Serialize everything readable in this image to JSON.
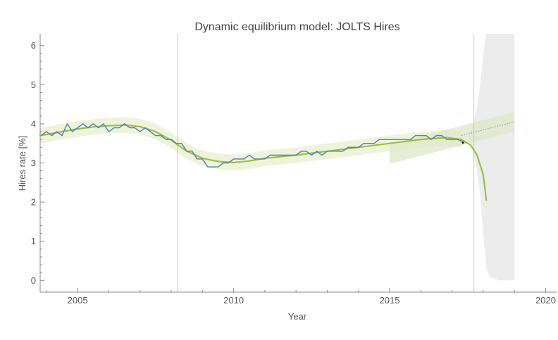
{
  "chart_data": {
    "type": "line",
    "title": "Dynamic equilibrium model: JOLTS Hires",
    "xlabel": "Year",
    "ylabel": "Hires rate [%]",
    "xlim": [
      2003.8,
      2020.35
    ],
    "ylim": [
      -0.3,
      6.3
    ],
    "x_ticks": [
      2005,
      2010,
      2015,
      2020
    ],
    "x_tick_labels": [
      "2005",
      "2010",
      "2015",
      "2020"
    ],
    "y_ticks": [
      0,
      1,
      2,
      3,
      4,
      5,
      6
    ],
    "y_tick_labels": [
      "0",
      "1",
      "2",
      "3",
      "4",
      "5",
      "6"
    ],
    "grid": false,
    "vertical_markers": [
      2008.2,
      2017.7
    ],
    "colors": {
      "data": "#5b84b1",
      "model": "#9dbd4a",
      "band": "#eef4dc",
      "forecast_band": "#dfe7c8",
      "uncertainty": "#ececec",
      "marker": "#c8c8c8",
      "axis": "#888888"
    },
    "series": [
      {
        "name": "",
        "role": "data",
        "x": [
          2003.83,
          2004.0,
          2004.17,
          2004.33,
          2004.5,
          2004.67,
          2004.83,
          2005.0,
          2005.17,
          2005.33,
          2005.5,
          2005.67,
          2005.83,
          2006.0,
          2006.17,
          2006.33,
          2006.5,
          2006.67,
          2006.83,
          2007.0,
          2007.17,
          2007.33,
          2007.5,
          2007.67,
          2007.83,
          2008.0,
          2008.17,
          2008.33,
          2008.5,
          2008.67,
          2008.83,
          2009.0,
          2009.17,
          2009.33,
          2009.5,
          2009.67,
          2009.83,
          2010.0,
          2010.17,
          2010.33,
          2010.5,
          2010.67,
          2010.83,
          2011.0,
          2011.17,
          2011.33,
          2011.5,
          2011.67,
          2011.83,
          2012.0,
          2012.17,
          2012.33,
          2012.5,
          2012.67,
          2012.83,
          2013.0,
          2013.17,
          2013.33,
          2013.5,
          2013.67,
          2013.83,
          2014.0,
          2014.17,
          2014.33,
          2014.5,
          2014.67,
          2014.83,
          2015.0,
          2015.17,
          2015.33,
          2015.5,
          2015.67,
          2015.83,
          2016.0,
          2016.17,
          2016.33,
          2016.5,
          2016.67,
          2016.83,
          2017.0,
          2017.17,
          2017.33
        ],
        "y": [
          3.7,
          3.8,
          3.7,
          3.8,
          3.7,
          4.0,
          3.8,
          3.9,
          4.0,
          3.9,
          4.0,
          3.9,
          4.0,
          3.8,
          3.9,
          3.9,
          4.0,
          3.9,
          3.9,
          3.8,
          3.9,
          3.8,
          3.7,
          3.7,
          3.6,
          3.6,
          3.5,
          3.5,
          3.3,
          3.3,
          3.1,
          3.1,
          2.9,
          2.9,
          2.9,
          3.0,
          3.0,
          3.1,
          3.1,
          3.1,
          3.2,
          3.1,
          3.1,
          3.1,
          3.2,
          3.2,
          3.2,
          3.2,
          3.2,
          3.2,
          3.3,
          3.3,
          3.2,
          3.3,
          3.2,
          3.3,
          3.3,
          3.3,
          3.3,
          3.4,
          3.4,
          3.4,
          3.5,
          3.5,
          3.5,
          3.6,
          3.6,
          3.6,
          3.6,
          3.6,
          3.6,
          3.6,
          3.7,
          3.7,
          3.7,
          3.6,
          3.7,
          3.7,
          3.6,
          3.6,
          3.6,
          3.55
        ]
      },
      {
        "name": "",
        "role": "model",
        "x": [
          2003.8,
          2004.5,
          2005.0,
          2005.5,
          2006.0,
          2006.5,
          2007.0,
          2007.5,
          2008.0,
          2008.5,
          2009.0,
          2009.5,
          2010.0,
          2010.5,
          2011.0,
          2012.0,
          2013.0,
          2014.0,
          2015.0,
          2016.0,
          2016.8,
          2017.3,
          2017.6,
          2017.8,
          2018.0,
          2018.1
        ],
        "y": [
          3.7,
          3.8,
          3.87,
          3.92,
          3.95,
          3.97,
          3.93,
          3.8,
          3.58,
          3.3,
          3.12,
          3.04,
          3.01,
          3.05,
          3.12,
          3.2,
          3.3,
          3.4,
          3.5,
          3.6,
          3.65,
          3.6,
          3.45,
          3.2,
          2.7,
          2.05
        ]
      },
      {
        "name": "",
        "role": "trend-extension",
        "x": [
          2017.3,
          2019.0
        ],
        "y": [
          3.7,
          4.05
        ]
      }
    ],
    "model_band_halfwidth": 0.2,
    "trend_band_halfwidth": 0.25,
    "endpoint": {
      "x": 2017.35,
      "y": 3.52
    },
    "forecast_uncertainty": {
      "x": [
        2017.55,
        2017.7,
        2017.8,
        2017.9,
        2018.0,
        2018.1,
        2018.2,
        2018.5,
        2019.0
      ],
      "upper": [
        3.7,
        4.05,
        4.4,
        5.0,
        5.8,
        6.3,
        6.3,
        6.3,
        6.3
      ],
      "lower": [
        3.55,
        3.2,
        2.8,
        2.2,
        1.2,
        0.3,
        0.1,
        0.0,
        0.0
      ]
    }
  }
}
